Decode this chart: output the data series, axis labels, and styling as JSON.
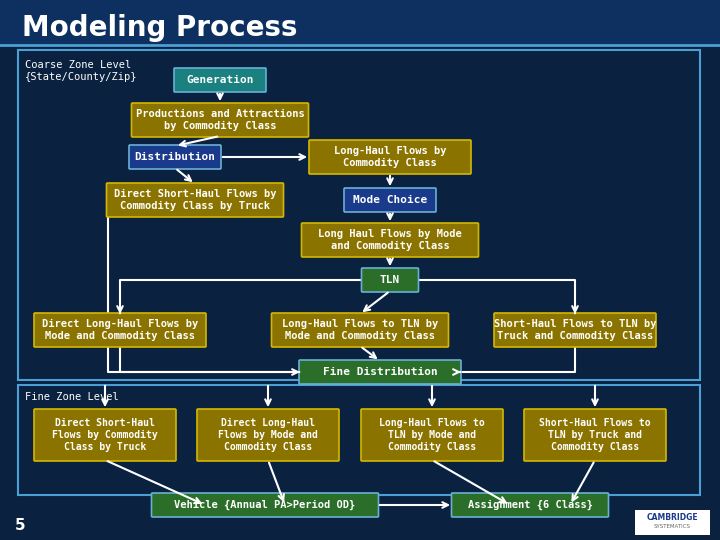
{
  "title": "Modeling Process",
  "bg_color": "#0a2240",
  "title_color": "#ffffff",
  "box_gold": "#8B7300",
  "box_blue": "#1a3a8c",
  "box_teal": "#1a8080",
  "box_green": "#2a6e2a",
  "text_color": "#ffffff",
  "border_color": "#4a9fd4",
  "arrow_color": "#ffffff",
  "coarse_label": "Coarse Zone Level\n{State/County/Zip}",
  "fine_label": "Fine Zone Level",
  "boxes": {
    "generation": {
      "text": "Generation",
      "color": "#1a8080"
    },
    "prod_attr": {
      "text": "Productions and Attractions\nby Commodity Class",
      "color": "#8B7300"
    },
    "distribution": {
      "text": "Distribution",
      "color": "#1a3a8c"
    },
    "long_haul_flows": {
      "text": "Long-Haul Flows by\nCommodity Class",
      "color": "#8B7300"
    },
    "direct_short": {
      "text": "Direct Short-Haul Flows by\nCommodity Class by Truck",
      "color": "#8B7300"
    },
    "mode_choice": {
      "text": "Mode Choice",
      "color": "#1a3a8c"
    },
    "long_haul_mode": {
      "text": "Long Haul Flows by Mode\nand Commodity Class",
      "color": "#8B7300"
    },
    "tln": {
      "text": "TLN",
      "color": "#2a6e2a"
    },
    "direct_long": {
      "text": "Direct Long-Haul Flows by\nMode and Commodity Class",
      "color": "#8B7300"
    },
    "long_tln": {
      "text": "Long-Haul Flows to TLN by\nMode and Commodity Class",
      "color": "#8B7300"
    },
    "short_tln": {
      "text": "Short-Haul Flows to TLN by\nTruck and Commodity Class",
      "color": "#8B7300"
    },
    "fine_dist": {
      "text": "Fine Distribution",
      "color": "#2a6e2a"
    },
    "fine_direct_short": {
      "text": "Direct Short-Haul\nFlows by Commodity\nClass by Truck",
      "color": "#8B7300"
    },
    "fine_direct_long": {
      "text": "Direct Long-Haul\nFlows by Mode and\nCommodity Class",
      "color": "#8B7300"
    },
    "fine_long_tln": {
      "text": "Long-Haul Flows to\nTLN by Mode and\nCommodity Class",
      "color": "#8B7300"
    },
    "fine_short_tln": {
      "text": "Short-Haul Flows to\nTLN by Truck and\nCommodity Class",
      "color": "#8B7300"
    },
    "vehicle": {
      "text": "Vehicle {Annual PA>Period OD}",
      "color": "#2a6e2a"
    },
    "assignment": {
      "text": "Assignment {6 Class}",
      "color": "#2a6e2a"
    }
  }
}
